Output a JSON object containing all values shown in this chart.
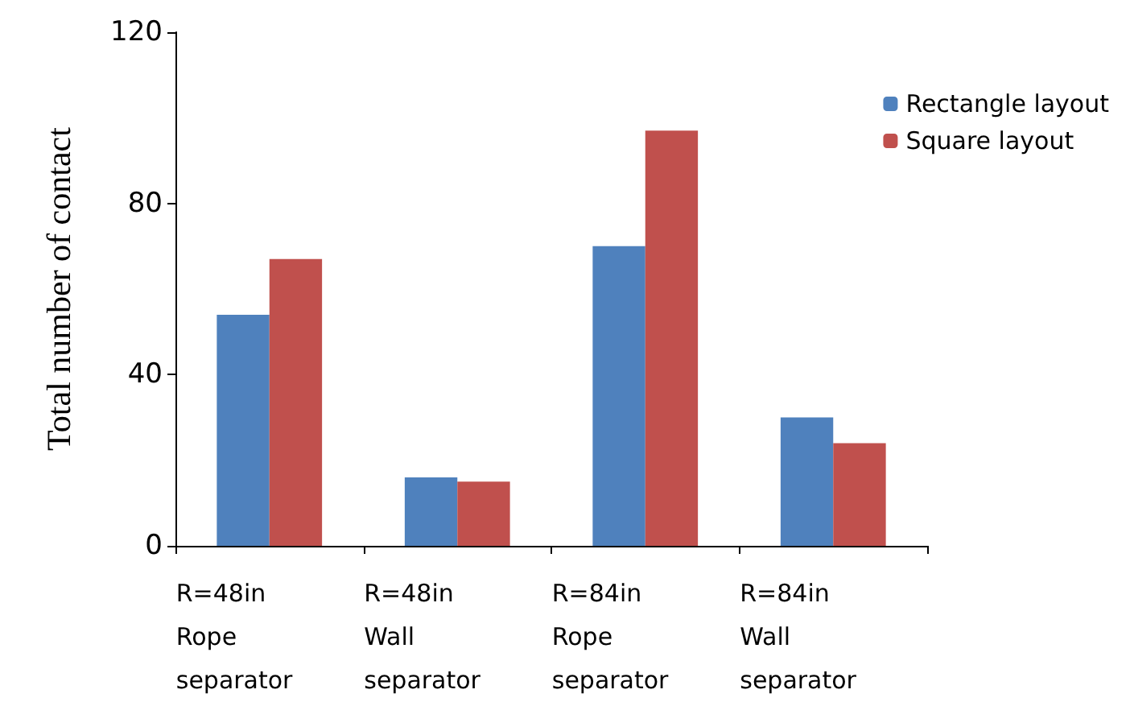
{
  "chart_data": {
    "type": "bar",
    "ylabel": "Total number of contact",
    "categories": [
      "R=48in Rope separator",
      "R=48in Wall separator",
      "R=84in Rope separator",
      "R=84in Wall separator"
    ],
    "series": [
      {
        "name": "Rectangle layout",
        "color": "#4f81bd",
        "values": [
          54,
          16,
          70,
          30
        ]
      },
      {
        "name": "Square layout",
        "color": "#c0504d",
        "values": [
          67,
          15,
          97,
          24
        ]
      }
    ],
    "ylim": [
      0,
      120
    ],
    "yticks": [
      0,
      40,
      80,
      120
    ],
    "grid": false,
    "legend": "top right"
  }
}
